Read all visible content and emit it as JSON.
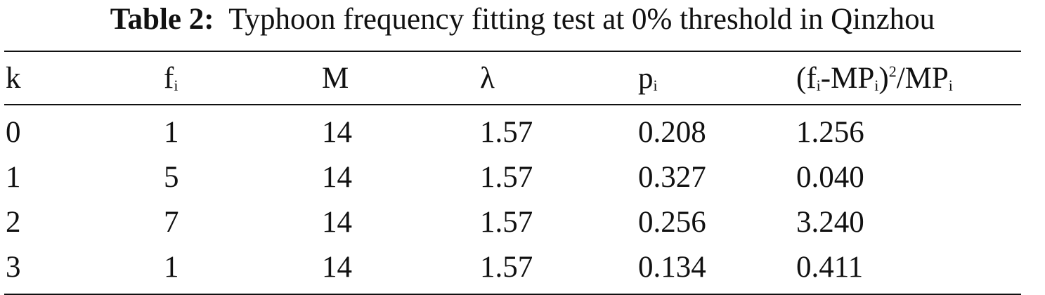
{
  "caption": {
    "label": "Table 2:",
    "text": "Typhoon frequency fitting test at 0% threshold in Qinzhou"
  },
  "table": {
    "headers": {
      "k": "k",
      "f": "f",
      "f_sub": "i",
      "M": "M",
      "lambda": "λ",
      "p": "p",
      "p_sub": "i",
      "chi_open": "(f",
      "chi_sub1": "i",
      "chi_mid": "-MP",
      "chi_sub2": "i",
      "chi_close": ")",
      "chi_sup": "2",
      "chi_div": "/MP",
      "chi_sub3": "i"
    },
    "rows": [
      [
        "0",
        "1",
        "14",
        "1.57",
        "0.208",
        "1.256"
      ],
      [
        "1",
        "5",
        "14",
        "1.57",
        "0.327",
        "0.040"
      ],
      [
        "2",
        "7",
        "14",
        "1.57",
        "0.256",
        "3.240"
      ],
      [
        "3",
        "1",
        "14",
        "1.57",
        "0.134",
        "0.411"
      ]
    ]
  }
}
